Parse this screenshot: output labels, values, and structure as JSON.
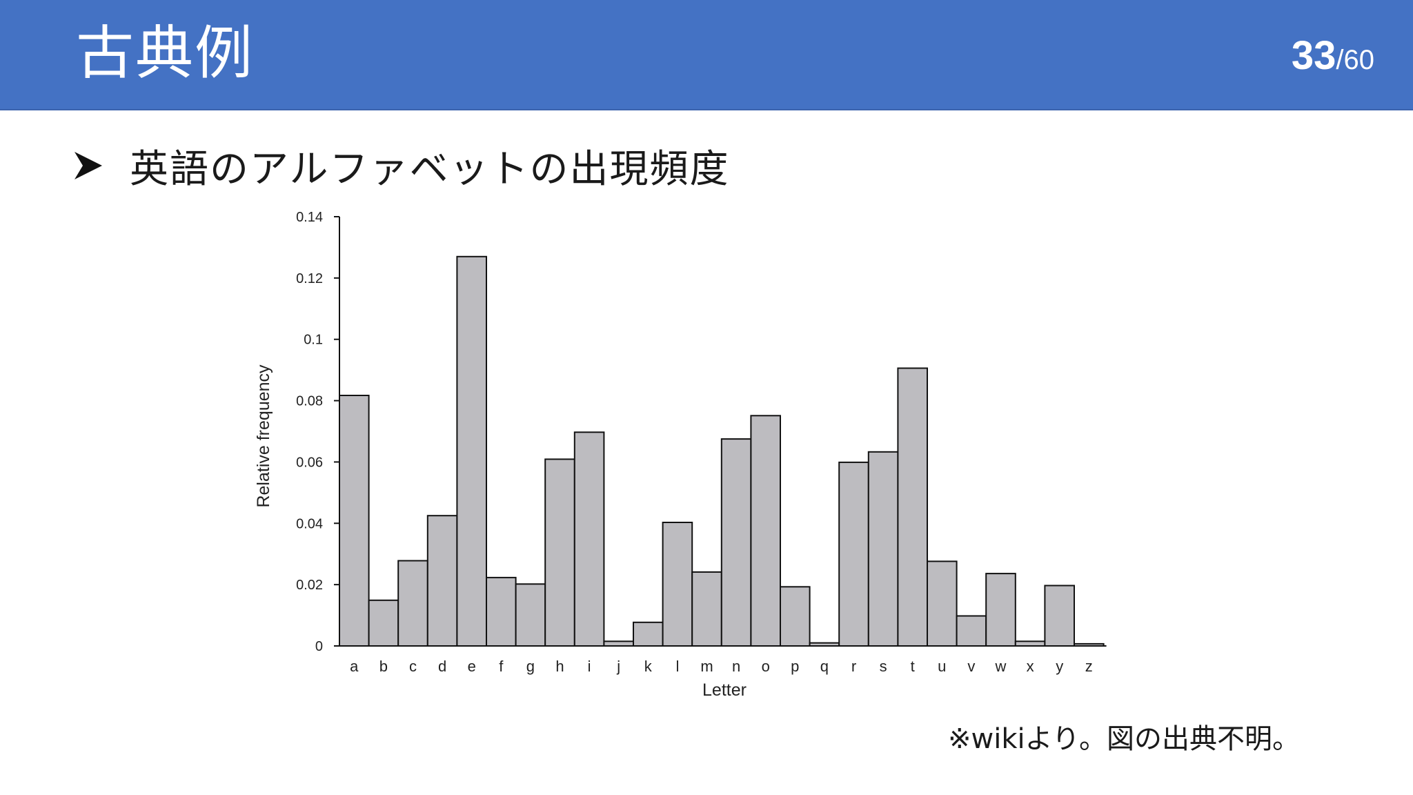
{
  "header": {
    "title": "古典例",
    "page_current": "33",
    "page_separator": "/",
    "page_total": "60",
    "background": "#4472c4"
  },
  "bullet": {
    "icon": "arrowhead-bullet-icon",
    "text": "英語のアルファベットの出現頻度"
  },
  "note": "※wikiより。図の出典不明。",
  "chart_data": {
    "type": "bar",
    "title": "",
    "xlabel": "Letter",
    "ylabel": "Relative frequency",
    "categories": [
      "a",
      "b",
      "c",
      "d",
      "e",
      "f",
      "g",
      "h",
      "i",
      "j",
      "k",
      "l",
      "m",
      "n",
      "o",
      "p",
      "q",
      "r",
      "s",
      "t",
      "u",
      "v",
      "w",
      "x",
      "y",
      "z"
    ],
    "values": [
      0.0817,
      0.0149,
      0.0278,
      0.0425,
      0.127,
      0.0223,
      0.0202,
      0.0609,
      0.0697,
      0.0015,
      0.0077,
      0.0403,
      0.0241,
      0.0675,
      0.0751,
      0.0193,
      0.001,
      0.0599,
      0.0633,
      0.0906,
      0.0276,
      0.0098,
      0.0236,
      0.0015,
      0.0197,
      0.0007
    ],
    "ylim": [
      0,
      0.14
    ],
    "yticks": [
      "0",
      "0.02",
      "0.04",
      "0.06",
      "0.08",
      "0.1",
      "0.12",
      "0.14"
    ],
    "grid": false,
    "bar_color": "#bdbcc0",
    "bar_edge_color": "#111111"
  }
}
